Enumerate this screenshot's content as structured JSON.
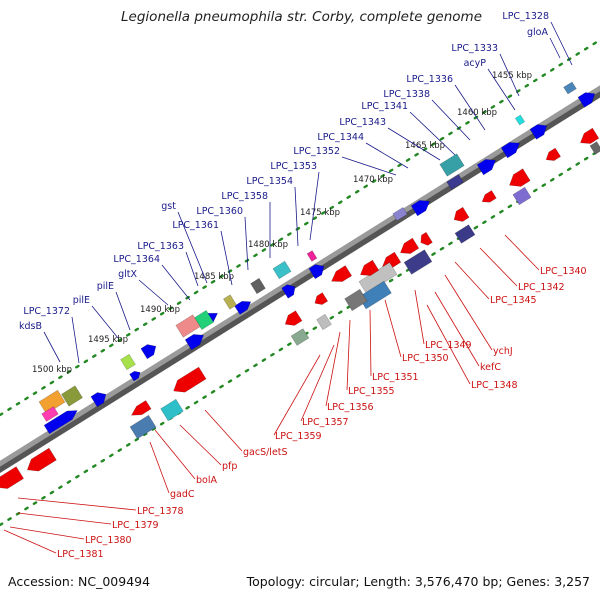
{
  "header": {
    "title": "Legionella pneumophila str. Corby, complete genome"
  },
  "footer": {
    "accession": "Accession: NC_009494",
    "summary": "Topology: circular; Length: 3,576,470 bp; Genes: 3,257"
  },
  "colors": {
    "forward_label": "#1a1a8a",
    "reverse_label": "#cc1111",
    "forward_gene": "#0000ee",
    "reverse_gene": "#ee0000",
    "backbone": "#777777",
    "tick_dots": "#228822"
  },
  "ticks": [
    {
      "label": "1455 kbp"
    },
    {
      "label": "1460 kbp"
    },
    {
      "label": "1465 kbp"
    },
    {
      "label": "1470 kbp"
    },
    {
      "label": "1475 kbp"
    },
    {
      "label": "1480 kbp"
    },
    {
      "label": "1485 kbp"
    },
    {
      "label": "1490 kbp"
    },
    {
      "label": "1495 kbp"
    },
    {
      "label": "1500 kbp"
    }
  ],
  "forward_genes": [
    {
      "label": "LPC_1328"
    },
    {
      "label": "gloA"
    },
    {
      "label": "LPC_1333"
    },
    {
      "label": "acyP"
    },
    {
      "label": "LPC_1336"
    },
    {
      "label": "LPC_1338"
    },
    {
      "label": "LPC_1341"
    },
    {
      "label": "LPC_1343"
    },
    {
      "label": "LPC_1344"
    },
    {
      "label": "LPC_1352"
    },
    {
      "label": "LPC_1353"
    },
    {
      "label": "LPC_1354"
    },
    {
      "label": "LPC_1358"
    },
    {
      "label": "gst"
    },
    {
      "label": "LPC_1360"
    },
    {
      "label": "LPC_1361"
    },
    {
      "label": "LPC_1363"
    },
    {
      "label": "LPC_1364"
    },
    {
      "label": "gltX"
    },
    {
      "label": "pilE"
    },
    {
      "label": "pilE"
    },
    {
      "label": "LPC_1372"
    },
    {
      "label": "kdsB"
    }
  ],
  "reverse_genes": [
    {
      "label": "LPC_1340"
    },
    {
      "label": "LPC_1342"
    },
    {
      "label": "LPC_1345"
    },
    {
      "label": "ychJ"
    },
    {
      "label": "LPC_1349"
    },
    {
      "label": "kefC"
    },
    {
      "label": "LPC_1348"
    },
    {
      "label": "LPC_1350"
    },
    {
      "label": "LPC_1351"
    },
    {
      "label": "LPC_1355"
    },
    {
      "label": "LPC_1356"
    },
    {
      "label": "LPC_1357"
    },
    {
      "label": "LPC_1359"
    },
    {
      "label": "gacS/letS"
    },
    {
      "label": "pfp"
    },
    {
      "label": "bolA"
    },
    {
      "label": "gadC"
    },
    {
      "label": "LPC_1378"
    },
    {
      "label": "LPC_1379"
    },
    {
      "label": "LPC_1380"
    },
    {
      "label": "LPC_1381"
    }
  ]
}
